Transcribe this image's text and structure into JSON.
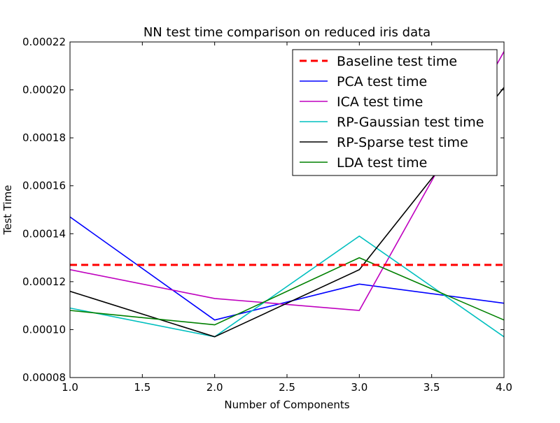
{
  "chart_data": {
    "type": "line",
    "title": "NN test time comparison on reduced iris data",
    "xlabel": "Number of Components",
    "ylabel": "Test Time",
    "xlim": [
      1.0,
      4.0
    ],
    "ylim": [
      8e-05,
      0.00022
    ],
    "x_ticks": [
      "1.0",
      "1.5",
      "2.0",
      "2.5",
      "3.0",
      "3.5",
      "4.0"
    ],
    "y_ticks": [
      "0.00008",
      "0.00010",
      "0.00012",
      "0.00014",
      "0.00016",
      "0.00018",
      "0.00020",
      "0.00022"
    ],
    "grid": false,
    "legend_position": "top-right",
    "x": [
      1,
      2,
      3,
      4
    ],
    "series": [
      {
        "name": "Baseline test time",
        "color": "#ff0000",
        "dash": true,
        "values": [
          0.000127,
          0.000127,
          0.000127,
          0.000127
        ]
      },
      {
        "name": "PCA test time",
        "color": "#0000ff",
        "dash": false,
        "values": [
          0.000147,
          0.000104,
          0.000119,
          0.000111
        ]
      },
      {
        "name": "ICA test time",
        "color": "#bf00bf",
        "dash": false,
        "values": [
          0.000125,
          0.000113,
          0.000108,
          0.000216
        ]
      },
      {
        "name": "RP-Gaussian test time",
        "color": "#00bfbf",
        "dash": false,
        "values": [
          0.000109,
          9.7e-05,
          0.000139,
          9.7e-05
        ]
      },
      {
        "name": "RP-Sparse test time",
        "color": "#000000",
        "dash": false,
        "values": [
          0.000116,
          9.7e-05,
          0.000125,
          0.000201
        ]
      },
      {
        "name": "LDA test time",
        "color": "#008000",
        "dash": false,
        "values": [
          0.000108,
          0.000102,
          0.00013,
          0.000104
        ]
      }
    ]
  }
}
